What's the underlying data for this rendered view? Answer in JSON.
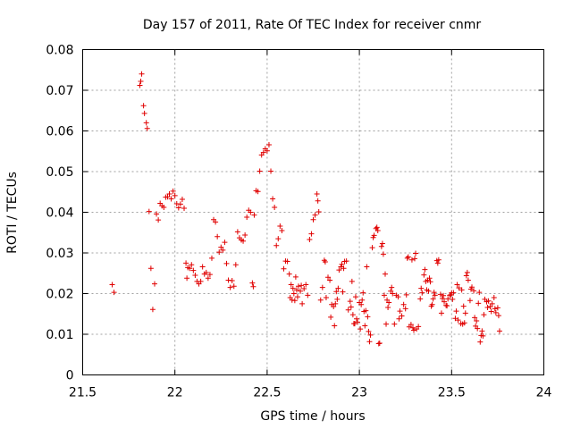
{
  "chart_data": {
    "type": "scatter",
    "title": "Day 157 of 2011, Rate Of TEC Index for receiver cnmr",
    "xlabel": "GPS time / hours",
    "ylabel": "ROTI / TECUs",
    "xlim": [
      21.5,
      24
    ],
    "ylim": [
      0,
      0.08
    ],
    "x_ticks": [
      21.5,
      22,
      22.5,
      23,
      23.5,
      24
    ],
    "x_tick_labels": [
      "21.5",
      "22",
      "22.5",
      "23",
      "23.5",
      "24"
    ],
    "y_ticks": [
      0,
      0.01,
      0.02,
      0.03,
      0.04,
      0.05,
      0.06,
      0.07,
      0.08
    ],
    "y_tick_labels": [
      "0",
      "0.01",
      "0.02",
      "0.03",
      "0.04",
      "0.05",
      "0.06",
      "0.07",
      "0.08"
    ],
    "grid": true,
    "marker": "plus",
    "color": "#e00000",
    "series": [
      {
        "name": "cnmr",
        "points": [
          [
            21.66,
            0.0222
          ],
          [
            21.67,
            0.0203
          ],
          [
            21.81,
            0.0712
          ],
          [
            21.815,
            0.0722
          ],
          [
            21.82,
            0.074
          ],
          [
            21.83,
            0.0662
          ],
          [
            21.835,
            0.0643
          ],
          [
            21.845,
            0.062
          ],
          [
            21.85,
            0.0606
          ],
          [
            21.86,
            0.0402
          ],
          [
            21.87,
            0.0262
          ],
          [
            21.88,
            0.0161
          ],
          [
            21.89,
            0.0224
          ],
          [
            21.9,
            0.0396
          ],
          [
            21.91,
            0.0381
          ],
          [
            21.92,
            0.0422
          ],
          [
            21.93,
            0.0416
          ],
          [
            21.94,
            0.0412
          ],
          [
            21.95,
            0.0437
          ],
          [
            21.96,
            0.0438
          ],
          [
            21.97,
            0.0445
          ],
          [
            21.98,
            0.0433
          ],
          [
            21.99,
            0.0452
          ],
          [
            22.0,
            0.0441
          ],
          [
            22.01,
            0.0421
          ],
          [
            22.02,
            0.0411
          ],
          [
            22.03,
            0.042
          ],
          [
            22.04,
            0.0432
          ],
          [
            22.05,
            0.041
          ],
          [
            22.06,
            0.0275
          ],
          [
            22.065,
            0.0238
          ],
          [
            22.07,
            0.0264
          ],
          [
            22.08,
            0.0262
          ],
          [
            22.09,
            0.0271
          ],
          [
            22.1,
            0.0257
          ],
          [
            22.11,
            0.0245
          ],
          [
            22.12,
            0.023
          ],
          [
            22.13,
            0.0224
          ],
          [
            22.14,
            0.023
          ],
          [
            22.15,
            0.0266
          ],
          [
            22.16,
            0.0248
          ],
          [
            22.17,
            0.0252
          ],
          [
            22.18,
            0.0238
          ],
          [
            22.19,
            0.0247
          ],
          [
            22.2,
            0.0287
          ],
          [
            22.21,
            0.0382
          ],
          [
            22.22,
            0.0376
          ],
          [
            22.23,
            0.034
          ],
          [
            22.24,
            0.0302
          ],
          [
            22.25,
            0.0314
          ],
          [
            22.26,
            0.0307
          ],
          [
            22.27,
            0.0326
          ],
          [
            22.28,
            0.0274
          ],
          [
            22.29,
            0.0233
          ],
          [
            22.3,
            0.0215
          ],
          [
            22.31,
            0.0232
          ],
          [
            22.32,
            0.0218
          ],
          [
            22.33,
            0.0271
          ],
          [
            22.34,
            0.0352
          ],
          [
            22.35,
            0.0337
          ],
          [
            22.36,
            0.0332
          ],
          [
            22.37,
            0.0329
          ],
          [
            22.38,
            0.0344
          ],
          [
            22.39,
            0.0388
          ],
          [
            22.4,
            0.0405
          ],
          [
            22.41,
            0.04
          ],
          [
            22.42,
            0.0226
          ],
          [
            22.425,
            0.0217
          ],
          [
            22.43,
            0.0393
          ],
          [
            22.44,
            0.0453
          ],
          [
            22.45,
            0.0451
          ],
          [
            22.46,
            0.0501
          ],
          [
            22.47,
            0.0541
          ],
          [
            22.48,
            0.0547
          ],
          [
            22.49,
            0.0556
          ],
          [
            22.5,
            0.0551
          ],
          [
            22.51,
            0.0566
          ],
          [
            22.52,
            0.0501
          ],
          [
            22.53,
            0.0433
          ],
          [
            22.54,
            0.0412
          ],
          [
            22.55,
            0.0318
          ],
          [
            22.56,
            0.0335
          ],
          [
            22.57,
            0.0366
          ],
          [
            22.58,
            0.0355
          ],
          [
            22.59,
            0.0261
          ],
          [
            22.6,
            0.028
          ],
          [
            22.61,
            0.0279
          ],
          [
            22.62,
            0.0248
          ],
          [
            22.625,
            0.019
          ],
          [
            22.63,
            0.0222
          ],
          [
            22.635,
            0.0184
          ],
          [
            22.64,
            0.0213
          ],
          [
            22.645,
            0.02
          ],
          [
            22.65,
            0.0183
          ],
          [
            22.655,
            0.0241
          ],
          [
            22.66,
            0.0209
          ],
          [
            22.665,
            0.0192
          ],
          [
            22.67,
            0.0218
          ],
          [
            22.68,
            0.0206
          ],
          [
            22.685,
            0.022
          ],
          [
            22.69,
            0.0175
          ],
          [
            22.7,
            0.0212
          ],
          [
            22.71,
            0.0222
          ],
          [
            22.72,
            0.0196
          ],
          [
            22.73,
            0.0333
          ],
          [
            22.74,
            0.0347
          ],
          [
            22.75,
            0.0382
          ],
          [
            22.76,
            0.0393
          ],
          [
            22.77,
            0.0445
          ],
          [
            22.775,
            0.0428
          ],
          [
            22.78,
            0.0401
          ],
          [
            22.79,
            0.0184
          ],
          [
            22.8,
            0.0215
          ],
          [
            22.81,
            0.0282
          ],
          [
            22.815,
            0.0278
          ],
          [
            22.82,
            0.019
          ],
          [
            22.83,
            0.024
          ],
          [
            22.84,
            0.0233
          ],
          [
            22.845,
            0.0142
          ],
          [
            22.85,
            0.0173
          ],
          [
            22.86,
            0.0168
          ],
          [
            22.865,
            0.0121
          ],
          [
            22.87,
            0.0175
          ],
          [
            22.875,
            0.0205
          ],
          [
            22.88,
            0.0186
          ],
          [
            22.885,
            0.0213
          ],
          [
            22.89,
            0.0258
          ],
          [
            22.9,
            0.0266
          ],
          [
            22.905,
            0.0272
          ],
          [
            22.91,
            0.0204
          ],
          [
            22.915,
            0.0262
          ],
          [
            22.92,
            0.0279
          ],
          [
            22.93,
            0.028
          ],
          [
            22.94,
            0.016
          ],
          [
            22.95,
            0.0181
          ],
          [
            22.955,
            0.0167
          ],
          [
            22.96,
            0.023
          ],
          [
            22.965,
            0.0148
          ],
          [
            22.97,
            0.0126
          ],
          [
            22.975,
            0.0126
          ],
          [
            22.98,
            0.0192
          ],
          [
            22.985,
            0.0138
          ],
          [
            22.99,
            0.013
          ],
          [
            23.0,
            0.0178
          ],
          [
            23.005,
            0.0113
          ],
          [
            23.01,
            0.0173
          ],
          [
            23.015,
            0.0184
          ],
          [
            23.02,
            0.0202
          ],
          [
            23.025,
            0.0156
          ],
          [
            23.03,
            0.0121
          ],
          [
            23.035,
            0.0158
          ],
          [
            23.04,
            0.0266
          ],
          [
            23.045,
            0.0143
          ],
          [
            23.05,
            0.0107
          ],
          [
            23.055,
            0.0082
          ],
          [
            23.06,
            0.0098
          ],
          [
            23.07,
            0.0313
          ],
          [
            23.075,
            0.0338
          ],
          [
            23.08,
            0.0343
          ],
          [
            23.09,
            0.036
          ],
          [
            23.095,
            0.0363
          ],
          [
            23.1,
            0.0355
          ],
          [
            23.105,
            0.0077
          ],
          [
            23.11,
            0.0078
          ],
          [
            23.12,
            0.0316
          ],
          [
            23.125,
            0.0323
          ],
          [
            23.13,
            0.0297
          ],
          [
            23.135,
            0.0196
          ],
          [
            23.14,
            0.0248
          ],
          [
            23.145,
            0.0125
          ],
          [
            23.15,
            0.0184
          ],
          [
            23.155,
            0.0166
          ],
          [
            23.16,
            0.0178
          ],
          [
            23.17,
            0.0206
          ],
          [
            23.175,
            0.0215
          ],
          [
            23.18,
            0.02
          ],
          [
            23.19,
            0.0125
          ],
          [
            23.2,
            0.0196
          ],
          [
            23.21,
            0.0192
          ],
          [
            23.215,
            0.0138
          ],
          [
            23.22,
            0.0157
          ],
          [
            23.23,
            0.0145
          ],
          [
            23.24,
            0.0173
          ],
          [
            23.25,
            0.0163
          ],
          [
            23.255,
            0.0197
          ],
          [
            23.26,
            0.0287
          ],
          [
            23.265,
            0.029
          ],
          [
            23.27,
            0.0118
          ],
          [
            23.28,
            0.0124
          ],
          [
            23.285,
            0.0283
          ],
          [
            23.29,
            0.0116
          ],
          [
            23.295,
            0.011
          ],
          [
            23.3,
            0.0286
          ],
          [
            23.305,
            0.0299
          ],
          [
            23.31,
            0.0113
          ],
          [
            23.32,
            0.0119
          ],
          [
            23.33,
            0.0187
          ],
          [
            23.335,
            0.0213
          ],
          [
            23.34,
            0.0202
          ],
          [
            23.35,
            0.0246
          ],
          [
            23.355,
            0.0259
          ],
          [
            23.36,
            0.023
          ],
          [
            23.365,
            0.0209
          ],
          [
            23.37,
            0.0233
          ],
          [
            23.375,
            0.0206
          ],
          [
            23.38,
            0.0238
          ],
          [
            23.385,
            0.0229
          ],
          [
            23.39,
            0.0169
          ],
          [
            23.395,
            0.0173
          ],
          [
            23.4,
            0.0187
          ],
          [
            23.405,
            0.0203
          ],
          [
            23.41,
            0.0196
          ],
          [
            23.42,
            0.0281
          ],
          [
            23.425,
            0.0275
          ],
          [
            23.43,
            0.0283
          ],
          [
            23.44,
            0.0198
          ],
          [
            23.445,
            0.0152
          ],
          [
            23.45,
            0.0188
          ],
          [
            23.455,
            0.0195
          ],
          [
            23.46,
            0.018
          ],
          [
            23.47,
            0.0171
          ],
          [
            23.475,
            0.017
          ],
          [
            23.48,
            0.0187
          ],
          [
            23.49,
            0.0196
          ],
          [
            23.495,
            0.0197
          ],
          [
            23.5,
            0.0202
          ],
          [
            23.505,
            0.0186
          ],
          [
            23.51,
            0.0202
          ],
          [
            23.52,
            0.0139
          ],
          [
            23.525,
            0.0157
          ],
          [
            23.53,
            0.0222
          ],
          [
            23.535,
            0.0135
          ],
          [
            23.54,
            0.0214
          ],
          [
            23.55,
            0.0126
          ],
          [
            23.555,
            0.0209
          ],
          [
            23.56,
            0.0125
          ],
          [
            23.565,
            0.0169
          ],
          [
            23.57,
            0.0128
          ],
          [
            23.575,
            0.0152
          ],
          [
            23.58,
            0.0244
          ],
          [
            23.585,
            0.0252
          ],
          [
            23.59,
            0.0233
          ],
          [
            23.6,
            0.0183
          ],
          [
            23.605,
            0.0211
          ],
          [
            23.61,
            0.0216
          ],
          [
            23.62,
            0.0207
          ],
          [
            23.625,
            0.0141
          ],
          [
            23.63,
            0.012
          ],
          [
            23.635,
            0.0133
          ],
          [
            23.64,
            0.0114
          ],
          [
            23.645,
            0.0176
          ],
          [
            23.65,
            0.0203
          ],
          [
            23.655,
            0.0081
          ],
          [
            23.66,
            0.0097
          ],
          [
            23.665,
            0.0108
          ],
          [
            23.67,
            0.0096
          ],
          [
            23.675,
            0.0148
          ],
          [
            23.68,
            0.0186
          ],
          [
            23.69,
            0.018
          ],
          [
            23.695,
            0.0166
          ],
          [
            23.7,
            0.0182
          ],
          [
            23.71,
            0.0168
          ],
          [
            23.715,
            0.0156
          ],
          [
            23.72,
            0.0175
          ],
          [
            23.73,
            0.019
          ],
          [
            23.735,
            0.0163
          ],
          [
            23.74,
            0.0153
          ],
          [
            23.75,
            0.0165
          ],
          [
            23.755,
            0.0146
          ],
          [
            23.76,
            0.0108
          ]
        ]
      }
    ]
  }
}
